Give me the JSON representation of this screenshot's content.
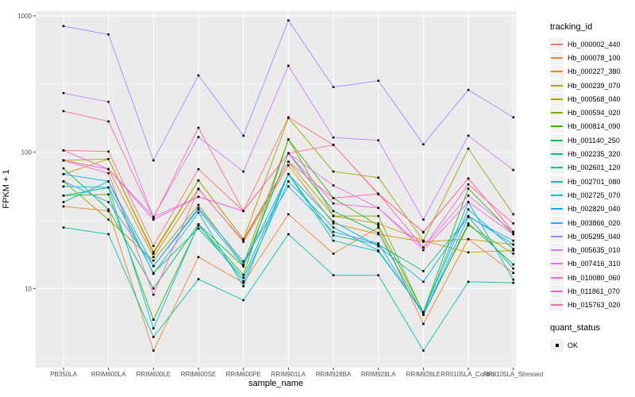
{
  "legend": {
    "tracking_title": "tracking_id",
    "quant_title": "quant_status",
    "quant_value": "OK"
  },
  "chart_data": {
    "type": "line",
    "title": "",
    "xlabel": "sample_name",
    "ylabel": "FPKM + 1",
    "y_scale": "log10",
    "ylim": [
      2.6,
      1080
    ],
    "y_major_ticks": [
      1000,
      100,
      10
    ],
    "y_minor_gridlines": [
      316.2,
      31.62,
      3.162
    ],
    "grid": true,
    "legend_position": "right",
    "point_marker": "black-square",
    "categories": [
      "PB350LA",
      "RRIM600LA",
      "RRIM600LE",
      "RRIM600SE",
      "RRIM600PE",
      "RRIM901LA",
      "RRIM928BA",
      "RRIM928LA",
      "RRIM928LE",
      "RRII105LA_Control",
      "RRII105LA_Stressed"
    ],
    "series": [
      {
        "name": "Hb_000002_440",
        "color": "#F8766D",
        "values": [
          103,
          101,
          20.5,
          75,
          37,
          180,
          113,
          49,
          26,
          64,
          26
        ]
      },
      {
        "name": "Hb_000078_100",
        "color": "#EA8331",
        "values": [
          40,
          37,
          3.5,
          17,
          11,
          35,
          18,
          28,
          5.5,
          23,
          13
        ]
      },
      {
        "name": "Hb_000227_380",
        "color": "#D89000",
        "values": [
          103,
          75,
          17,
          54,
          22,
          80,
          30,
          25,
          22,
          23,
          21
        ]
      },
      {
        "name": "Hb_000239_070",
        "color": "#C09B00",
        "values": [
          69,
          89,
          18,
          62,
          23,
          85,
          34,
          30,
          22.4,
          18.4,
          19
        ]
      },
      {
        "name": "Hb_000568_040",
        "color": "#A3A500",
        "values": [
          87,
          89,
          18.5,
          62,
          23,
          178,
          72,
          65,
          22.4,
          106,
          35
        ]
      },
      {
        "name": "Hb_000594_020",
        "color": "#7CAE00",
        "values": [
          61,
          32,
          16,
          41,
          15,
          124,
          34,
          34,
          6.6,
          29,
          18
        ]
      },
      {
        "name": "Hb_000814_090",
        "color": "#39B600",
        "values": [
          48,
          49,
          5.9,
          29,
          12.6,
          124,
          46,
          29,
          6.7,
          54,
          25
        ]
      },
      {
        "name": "Hb_001140_250",
        "color": "#00BB4E",
        "values": [
          76,
          38,
          10,
          29.5,
          14.5,
          98,
          37,
          25.6,
          6.4,
          30,
          15
        ]
      },
      {
        "name": "Hb_002235_320",
        "color": "#00BF7D",
        "values": [
          48,
          55,
          13,
          27.5,
          12,
          69,
          24.5,
          21,
          13.4,
          33.5,
          14
        ]
      },
      {
        "name": "Hb_002601_120",
        "color": "#00C1A3",
        "values": [
          28,
          25,
          4.4,
          11.7,
          8.2,
          25,
          12.5,
          12.5,
          3.5,
          11.2,
          11
        ]
      },
      {
        "name": "Hb_002701_080",
        "color": "#00BFC4",
        "values": [
          43,
          61,
          12.8,
          36,
          10.4,
          69,
          22.4,
          18.7,
          6.7,
          43,
          11.6
        ]
      },
      {
        "name": "Hb_002725_070",
        "color": "#00BAE0",
        "values": [
          56,
          55,
          5.1,
          29.5,
          11.3,
          61,
          28,
          19,
          6.7,
          38,
          19.5
        ]
      },
      {
        "name": "Hb_002820_040",
        "color": "#00B0F6",
        "values": [
          69,
          61,
          14.6,
          38,
          14.7,
          69,
          31,
          20.4,
          11.2,
          34,
          21
        ]
      },
      {
        "name": "Hb_003866_020",
        "color": "#35A2FF",
        "values": [
          61,
          43,
          14.6,
          39,
          15.8,
          56,
          26,
          21.4,
          6.4,
          33.5,
          22.4
        ]
      },
      {
        "name": "Hb_005295_040",
        "color": "#9590FF",
        "values": [
          840,
          730,
          87,
          365,
          132,
          925,
          300,
          334,
          114,
          286,
          180
        ]
      },
      {
        "name": "Hb_005635_010",
        "color": "#C77CFF",
        "values": [
          271,
          234,
          33.5,
          129,
          72,
          430,
          128,
          122,
          32,
          132,
          74
        ]
      },
      {
        "name": "Hb_007416_310",
        "color": "#E76BF3",
        "values": [
          103,
          75,
          33.5,
          47,
          37,
          98,
          57,
          39,
          20,
          48,
          26
        ]
      },
      {
        "name": "Hb_010080_060",
        "color": "#FA62DB",
        "values": [
          87,
          75,
          32,
          47,
          37,
          98,
          42,
          39,
          19.1,
          43,
          25
        ]
      },
      {
        "name": "Hb_011861_070",
        "color": "#FF62BC",
        "values": [
          87,
          70,
          9,
          53.5,
          22.4,
          85,
          46,
          49.5,
          20,
          58,
          30
        ]
      },
      {
        "name": "Hb_015763_020",
        "color": "#FF6A98",
        "values": [
          200,
          168,
          33,
          151,
          37,
          98,
          113,
          49.5,
          25.8,
          64,
          26
        ]
      }
    ],
    "colors": {
      "panel_bg": "#EBEBEB",
      "grid": "#FFFFFF",
      "axis_text": "#4D4D4D",
      "axis_title": "#000000",
      "point": "#000000",
      "tick": "#333333",
      "legend_key_bg": "#F2F2F2"
    }
  }
}
